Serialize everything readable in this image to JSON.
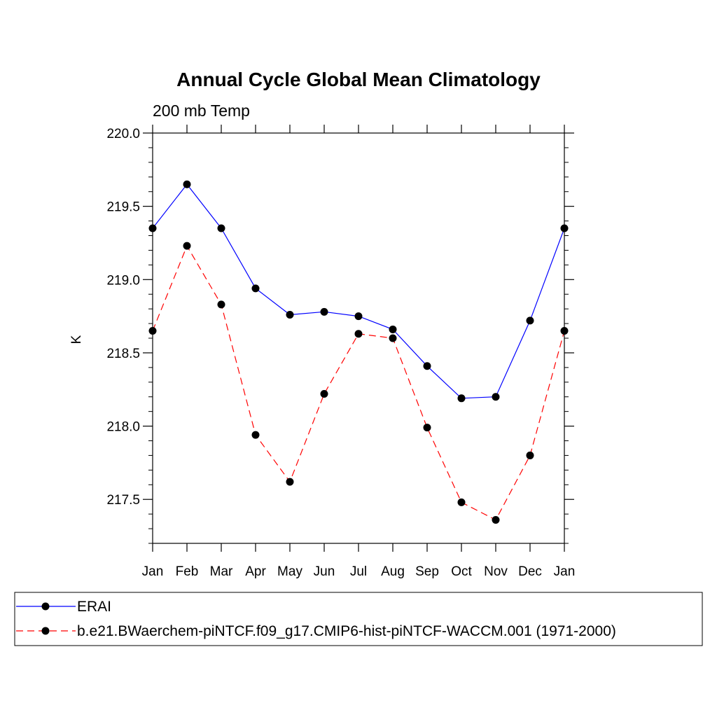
{
  "chart_data": {
    "type": "line",
    "title": "Annual Cycle Global Mean Climatology",
    "subtitle": "200 mb Temp",
    "xlabel": "",
    "ylabel": "K",
    "categories": [
      "Jan",
      "Feb",
      "Mar",
      "Apr",
      "May",
      "Jun",
      "Jul",
      "Aug",
      "Sep",
      "Oct",
      "Nov",
      "Dec",
      "Jan"
    ],
    "ylim": [
      217.2,
      220.0
    ],
    "yticks": [
      217.5,
      218.0,
      218.5,
      219.0,
      219.5,
      220.0
    ],
    "ytick_labels": [
      "217.5",
      "218.0",
      "218.5",
      "219.0",
      "219.5",
      "220.0"
    ],
    "y_minor_step": 0.1,
    "grid": false,
    "legend_position": "bottom",
    "series": [
      {
        "name": "ERAI",
        "color": "#0000ff",
        "line_style": "solid",
        "marker": "filled-circle",
        "values": [
          219.35,
          219.65,
          219.35,
          218.94,
          218.76,
          218.78,
          218.75,
          218.66,
          218.41,
          218.19,
          218.2,
          218.72,
          219.35
        ]
      },
      {
        "name": "b.e21.BWaerchem-piNTCF.f09_g17.CMIP6-hist-piNTCF-WACCM.001 (1971-2000)",
        "color": "#ff0000",
        "line_style": "dashed",
        "marker": "filled-circle",
        "values": [
          218.65,
          219.23,
          218.83,
          217.94,
          217.62,
          218.22,
          218.63,
          218.6,
          217.99,
          217.48,
          217.36,
          217.8,
          218.65
        ]
      }
    ]
  }
}
